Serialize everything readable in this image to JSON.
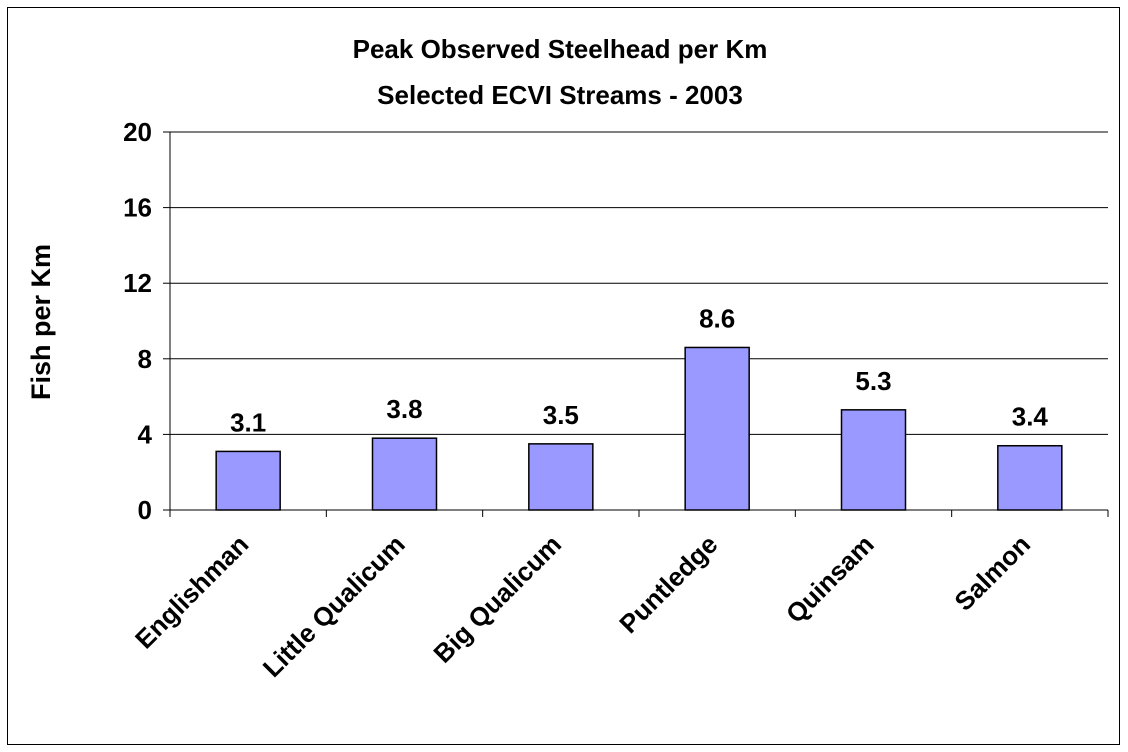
{
  "chart_data": {
    "type": "bar",
    "title": "Peak Observed Steelhead per Km",
    "subtitle": "Selected ECVI Streams - 2003",
    "y_label": "Fish per Km",
    "categories": [
      "Englishman",
      "Little Qualicum",
      "Big Qualicum",
      "Puntledge",
      "Quinsam",
      "Salmon"
    ],
    "values": [
      3.1,
      3.8,
      3.5,
      8.6,
      5.3,
      3.4
    ],
    "color": "#9999ff",
    "ylim": [
      0,
      20
    ],
    "yticks": [
      0,
      4,
      8,
      12,
      16,
      20
    ],
    "grid": true
  }
}
